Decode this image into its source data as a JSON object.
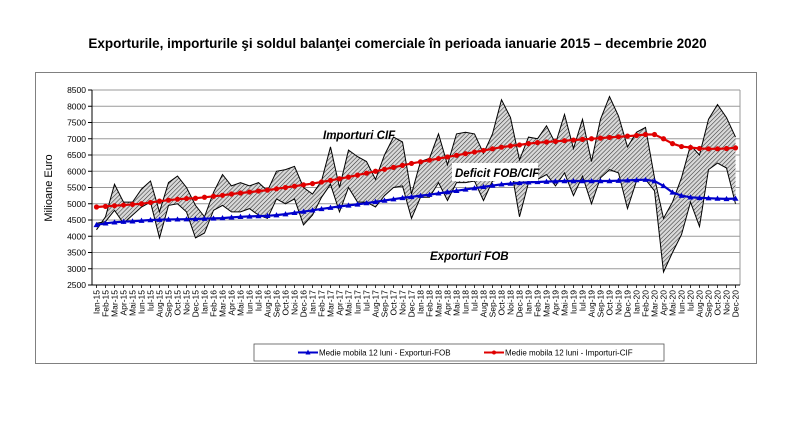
{
  "chart_data": {
    "type": "line",
    "title": "Exporturile, importurile şi soldul balanţei comerciale în perioada ianuarie 2015 – decembrie 2020",
    "ylabel": "Milioane Euro",
    "xlabel": "",
    "ylim": [
      2500,
      8500
    ],
    "yticks": [
      2500,
      3000,
      3500,
      4000,
      4500,
      5000,
      5500,
      6000,
      6500,
      7000,
      7500,
      8000,
      8500
    ],
    "grid": true,
    "categories": [
      "Ian-15",
      "Feb-15",
      "Mar-15",
      "Apr-15",
      "Mai-15",
      "Iun-15",
      "Iul-15",
      "Aug-15",
      "Sep-15",
      "Oct-15",
      "Noi-15",
      "Dec-15",
      "Ian-16",
      "Feb-16",
      "Mar-16",
      "Apr-16",
      "Mai-16",
      "Iun-16",
      "Iul-16",
      "Aug-16",
      "Sep-16",
      "Oct-16",
      "Noi-16",
      "Dec-16",
      "Ian-17",
      "Feb-17",
      "Mar-17",
      "Apr-17",
      "Mai-17",
      "Iun-17",
      "Iul-17",
      "Aug-17",
      "Sep-17",
      "Oct-17",
      "Noi-17",
      "Dec-17",
      "Ian-18",
      "Feb-18",
      "Mar-18",
      "Apr-18",
      "Mai-18",
      "Iun-18",
      "Iul-18",
      "Aug-18",
      "Sep-18",
      "Oct-18",
      "Noi-18",
      "Dec-18",
      "Ian-19",
      "Feb-19",
      "Mar-19",
      "Apr-19",
      "Mai-19",
      "Iun-19",
      "Iul-19",
      "Aug-19",
      "Sep-19",
      "Oct-19",
      "Noi-19",
      "Dec-19",
      "Ian-20",
      "Feb-20",
      "Mar-20",
      "Apr-20",
      "Mai-20",
      "Iun-20",
      "Iul-20",
      "Aug-20",
      "Sep-20",
      "Oct-20",
      "Noi-20",
      "Dec-20"
    ],
    "series": [
      {
        "name": "Importuri CIF",
        "color": "#000000",
        "values": [
          4200,
          4600,
          5600,
          5050,
          5050,
          5450,
          5700,
          4750,
          5650,
          5850,
          5500,
          4950,
          4600,
          5350,
          5900,
          5550,
          5650,
          5550,
          5650,
          5400,
          6000,
          6050,
          6150,
          5500,
          5300,
          5700,
          6750,
          5500,
          6650,
          6450,
          6300,
          5750,
          6500,
          7050,
          6900,
          5300,
          6300,
          6400,
          7150,
          6200,
          7150,
          7200,
          7150,
          6550,
          7150,
          8200,
          7650,
          6350,
          7050,
          7000,
          7400,
          6850,
          7750,
          6700,
          7600,
          6300,
          7600,
          8300,
          7700,
          6750,
          7200,
          7350,
          5800,
          4550,
          5050,
          5800,
          6800,
          6500,
          7600,
          8050,
          7650,
          7050
        ]
      },
      {
        "name": "Exporturi FOB",
        "color": "#000000",
        "values": [
          4400,
          4450,
          4800,
          4400,
          4650,
          4900,
          5050,
          3950,
          4950,
          5000,
          4750,
          3950,
          4100,
          4800,
          4950,
          4750,
          4750,
          4850,
          4650,
          4550,
          5150,
          5000,
          5150,
          4350,
          4650,
          5200,
          5600,
          4750,
          5500,
          5050,
          5050,
          4900,
          5250,
          5500,
          5550,
          4550,
          5200,
          5200,
          5650,
          5100,
          5650,
          5650,
          5700,
          5100,
          5700,
          5750,
          6200,
          4600,
          5650,
          5750,
          5900,
          5550,
          5950,
          5250,
          5850,
          5000,
          5800,
          6050,
          5950,
          4850,
          5700,
          5750,
          5400,
          2900,
          3500,
          4050,
          5050,
          4300,
          6050,
          6250,
          6100,
          5000
        ]
      },
      {
        "name": "Medie mobila 12 luni - Exporturi-FOB",
        "color": "#0000CC",
        "marker": "triangle",
        "values": [
          4350,
          4400,
          4430,
          4450,
          4460,
          4480,
          4500,
          4510,
          4515,
          4520,
          4525,
          4530,
          4540,
          4550,
          4560,
          4580,
          4600,
          4610,
          4620,
          4630,
          4650,
          4680,
          4720,
          4760,
          4800,
          4840,
          4880,
          4920,
          4950,
          4980,
          5020,
          5060,
          5100,
          5140,
          5180,
          5210,
          5250,
          5280,
          5320,
          5360,
          5400,
          5440,
          5480,
          5520,
          5560,
          5600,
          5620,
          5640,
          5660,
          5670,
          5680,
          5690,
          5700,
          5700,
          5700,
          5700,
          5700,
          5700,
          5710,
          5720,
          5730,
          5740,
          5700,
          5550,
          5350,
          5250,
          5200,
          5180,
          5170,
          5160,
          5150,
          5160
        ]
      },
      {
        "name": "Medie mobila 12 luni - Importuri-CIF",
        "color": "#E00000",
        "marker": "circle",
        "values": [
          4900,
          4920,
          4940,
          4960,
          4980,
          5000,
          5040,
          5080,
          5110,
          5140,
          5160,
          5170,
          5200,
          5230,
          5260,
          5300,
          5330,
          5360,
          5390,
          5420,
          5460,
          5500,
          5540,
          5580,
          5620,
          5670,
          5720,
          5770,
          5820,
          5880,
          5940,
          6000,
          6060,
          6120,
          6180,
          6240,
          6290,
          6340,
          6390,
          6440,
          6490,
          6540,
          6590,
          6640,
          6690,
          6740,
          6780,
          6810,
          6850,
          6880,
          6900,
          6920,
          6940,
          6960,
          6980,
          7000,
          7020,
          7040,
          7060,
          7080,
          7100,
          7130,
          7130,
          7000,
          6850,
          6760,
          6730,
          6700,
          6690,
          6690,
          6700,
          6720
        ]
      }
    ],
    "annotations": [
      "Importuri CIF",
      "Deficit FOB/CIF",
      "Exporturi FOB"
    ],
    "legend": {
      "placement": "bottom",
      "entries": [
        "Medie mobila 12 luni - Exporturi-FOB",
        "Medie mobila 12 luni - Importuri-CIF"
      ]
    }
  }
}
